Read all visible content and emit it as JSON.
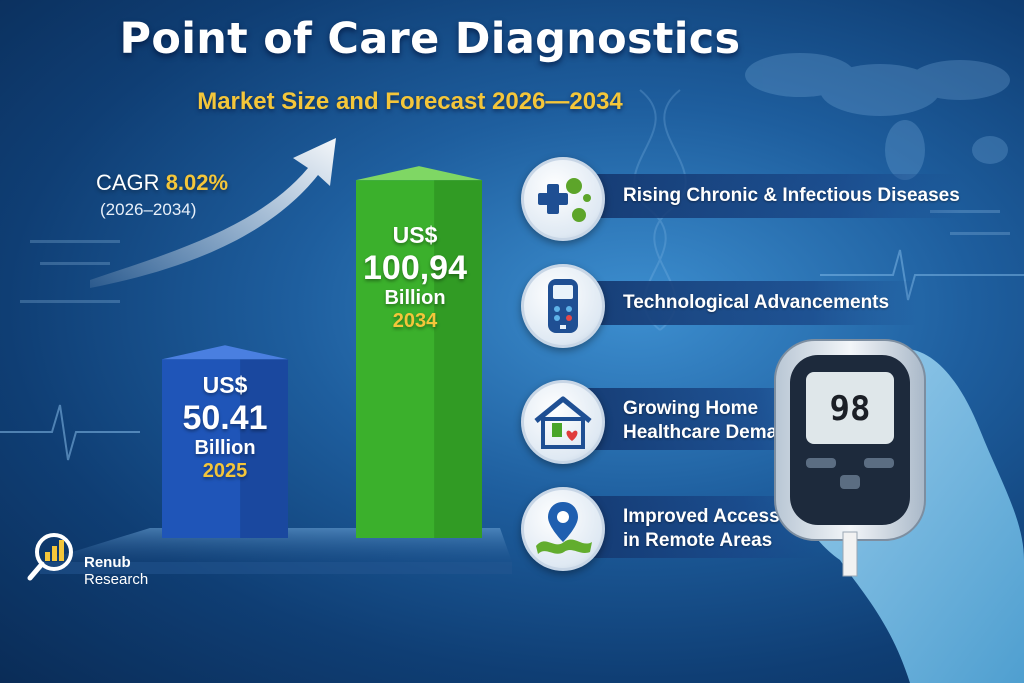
{
  "header": {
    "title": "Point of Care Diagnostics",
    "subtitle": "Market Size and Forecast 2026—2034"
  },
  "cagr": {
    "label": "CAGR",
    "value": "8.02%",
    "period": "(2026–2034)"
  },
  "chart_data": {
    "type": "bar",
    "categories": [
      "2025",
      "2034"
    ],
    "values": [
      50.41,
      100.94
    ],
    "ylim": [
      0,
      110
    ],
    "colors": [
      "#1f55b8",
      "#3bb02c"
    ],
    "labels": [
      {
        "currency": "US$",
        "value": "50.41",
        "unit": "Billion",
        "year": "2025"
      },
      {
        "currency": "US$",
        "value": "100,94",
        "unit": "Billion",
        "year": "2034"
      }
    ]
  },
  "drivers": [
    {
      "text_lines": [
        "Rising Chronic & Infectious Diseases"
      ],
      "icon": "medical-cross-virus-icon"
    },
    {
      "text_lines": [
        "Technological Advancements"
      ],
      "icon": "device-icon"
    },
    {
      "text_lines": [
        "Growing Home",
        "Healthcare Demand"
      ],
      "icon": "home-heart-icon"
    },
    {
      "text_lines": [
        "Improved Access",
        "in Remote Areas"
      ],
      "icon": "map-pin-icon"
    }
  ],
  "device": {
    "reading": "98"
  },
  "brand": {
    "line1": "Renub",
    "line2": "Research"
  },
  "colors": {
    "accent": "#f4c63a",
    "bar_2025": "#1f55b8",
    "bar_2034": "#3bb02c"
  }
}
